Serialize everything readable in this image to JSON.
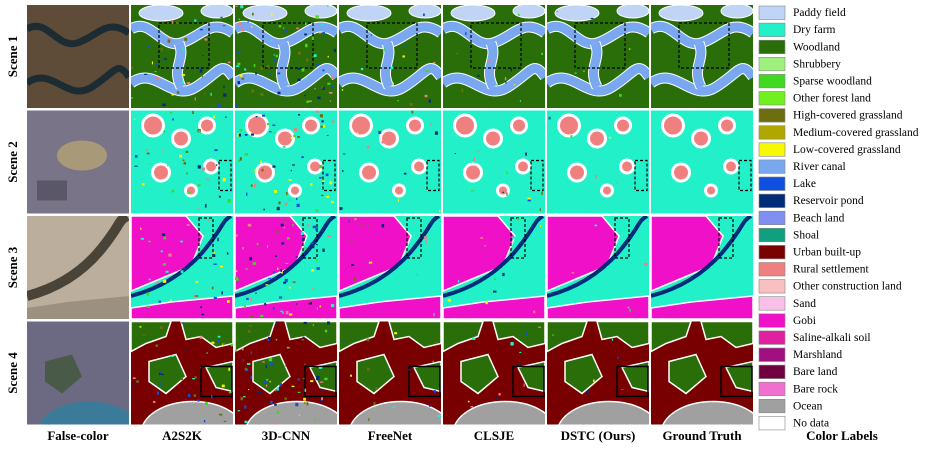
{
  "columns": [
    "False-color",
    "A2S2K",
    "3D-CNN",
    "FreeNet",
    "CLSJE",
    "DSTC (Ours)",
    "Ground Truth"
  ],
  "rows": [
    "Scene 1",
    "Scene 2",
    "Scene 3",
    "Scene 4"
  ],
  "legend_title": "Color Labels",
  "legend": [
    {
      "label": "Paddy field",
      "color": "#c0d4f5"
    },
    {
      "label": "Dry farm",
      "color": "#22f0c8"
    },
    {
      "label": "Woodland",
      "color": "#2a6e0a"
    },
    {
      "label": "Shrubbery",
      "color": "#a0f080"
    },
    {
      "label": "Sparse woodland",
      "color": "#40d820"
    },
    {
      "label": "Other forest land",
      "color": "#70f020"
    },
    {
      "label": "High-covered grassland",
      "color": "#6e6e10"
    },
    {
      "label": "Medium-covered grassland",
      "color": "#b0a800"
    },
    {
      "label": "Low-covered grassland",
      "color": "#f8f800"
    },
    {
      "label": "River canal",
      "color": "#7aa8f0"
    },
    {
      "label": "Lake",
      "color": "#1050e0"
    },
    {
      "label": "Reservoir pond",
      "color": "#002c78"
    },
    {
      "label": "Beach land",
      "color": "#8090f0"
    },
    {
      "label": "Shoal",
      "color": "#10a080"
    },
    {
      "label": "Urban built-up",
      "color": "#780000"
    },
    {
      "label": "Rural settlement",
      "color": "#f08080"
    },
    {
      "label": "Other construction land",
      "color": "#f8c0c0"
    },
    {
      "label": "Sand",
      "color": "#f8c0e8"
    },
    {
      "label": "Gobi",
      "color": "#f010c8"
    },
    {
      "label": "Saline-alkali soil",
      "color": "#e020a0"
    },
    {
      "label": "Marshland",
      "color": "#a01080"
    },
    {
      "label": "Bare land",
      "color": "#700040"
    },
    {
      "label": "Bare rock",
      "color": "#f070d0"
    },
    {
      "label": "Ocean",
      "color": "#a0a0a0"
    },
    {
      "label": "No data",
      "color": "#ffffff"
    }
  ]
}
